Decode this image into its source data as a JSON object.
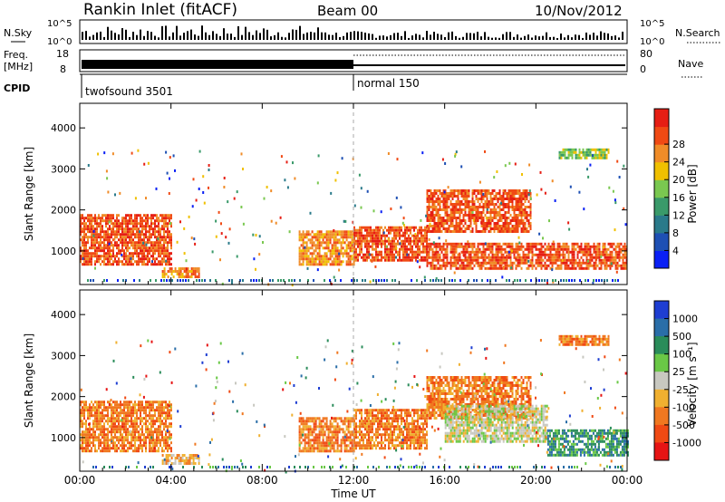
{
  "header": {
    "station": "Rankin Inlet (fitACF)",
    "beam": "Beam 00",
    "date": "10/Nov/2012"
  },
  "strip_labels": {
    "nsky": "N.Sky",
    "nsky_ticks": [
      "10^5",
      "10^0"
    ],
    "nsearch": "N.Search",
    "nsearch_ticks": [
      "10^5",
      "10^0"
    ],
    "freq": "Freq.",
    "freq_unit": "[MHz]",
    "freq_ticks": [
      "18",
      "8"
    ],
    "nave": "Nave",
    "nave_ticks": [
      "80",
      "0"
    ],
    "cpid": "CPID",
    "cpid_segments": [
      "twofsound 3501",
      "normal 150"
    ]
  },
  "axes": {
    "ylabel": "Slant Range [km]",
    "yticks": [
      "1000",
      "2000",
      "3000",
      "4000"
    ],
    "xticks": [
      "00:00",
      "04:00",
      "08:00",
      "12:00",
      "16:00",
      "20:00",
      "00:00"
    ],
    "xlabel": "Time UT"
  },
  "power_colorbar": {
    "label": "Power [dB]",
    "ticks": [
      "4",
      "8",
      "12",
      "16",
      "20",
      "24",
      "28"
    ],
    "colors": [
      "#0a20f5",
      "#1e50b4",
      "#2a7a8a",
      "#3a9a6a",
      "#7ac850",
      "#f0c000",
      "#f08c28",
      "#f04a14",
      "#e61e14"
    ]
  },
  "velocity_colorbar": {
    "label": "Velocity [m s⁻¹]",
    "ticks": [
      "1000",
      "500",
      "100",
      "25",
      "-25",
      "-100",
      "-500",
      "-1000"
    ],
    "colors": [
      "#1e3ed2",
      "#2a6ea8",
      "#2a8c5a",
      "#6ac846",
      "#c8c8c0",
      "#f0b030",
      "#f07820",
      "#f04a14",
      "#e61414"
    ]
  },
  "chart_data": [
    {
      "type": "heatmap",
      "title": "Power",
      "xlabel": "Time UT",
      "ylabel": "Slant Range [km]",
      "x_range_hours": [
        0,
        24
      ],
      "ylim": [
        180,
        4600
      ],
      "colorbar_label": "Power [dB]",
      "echo_regions": [
        {
          "t": [
            0.0,
            4.0
          ],
          "range_km": [
            700,
            1900
          ],
          "value": 26
        },
        {
          "t": [
            3.6,
            5.2
          ],
          "range_km": [
            350,
            600
          ],
          "value": 22
        },
        {
          "t": [
            9.6,
            12.0
          ],
          "range_km": [
            700,
            1500
          ],
          "value": 22
        },
        {
          "t": [
            12.0,
            15.2
          ],
          "range_km": [
            750,
            1600
          ],
          "value": 27
        },
        {
          "t": [
            15.2,
            19.8
          ],
          "range_km": [
            1500,
            2500
          ],
          "value": 28
        },
        {
          "t": [
            15.2,
            24.0
          ],
          "range_km": [
            600,
            1200
          ],
          "value": 26
        },
        {
          "t": [
            21.0,
            23.2
          ],
          "range_km": [
            3300,
            3500
          ],
          "value": 14
        }
      ]
    },
    {
      "type": "heatmap",
      "title": "Velocity",
      "xlabel": "Time UT",
      "ylabel": "Slant Range [km]",
      "x_range_hours": [
        0,
        24
      ],
      "ylim": [
        180,
        4600
      ],
      "colorbar_label": "Velocity [m s-1]",
      "echo_regions": [
        {
          "t": [
            0.0,
            4.0
          ],
          "range_km": [
            700,
            1900
          ],
          "value": -200
        },
        {
          "t": [
            3.6,
            5.2
          ],
          "range_km": [
            350,
            600
          ],
          "value": -80
        },
        {
          "t": [
            9.6,
            12.0
          ],
          "range_km": [
            700,
            1500
          ],
          "value": -300
        },
        {
          "t": [
            12.0,
            15.2
          ],
          "range_km": [
            750,
            1700
          ],
          "value": -350
        },
        {
          "t": [
            15.2,
            19.8
          ],
          "range_km": [
            1500,
            2500
          ],
          "value": -300
        },
        {
          "t": [
            16.0,
            20.5
          ],
          "range_km": [
            900,
            1800
          ],
          "value": 0
        },
        {
          "t": [
            20.5,
            24.0
          ],
          "range_km": [
            600,
            1200
          ],
          "value": 150
        },
        {
          "t": [
            21.0,
            23.2
          ],
          "range_km": [
            3300,
            3500
          ],
          "value": -150
        }
      ]
    }
  ]
}
